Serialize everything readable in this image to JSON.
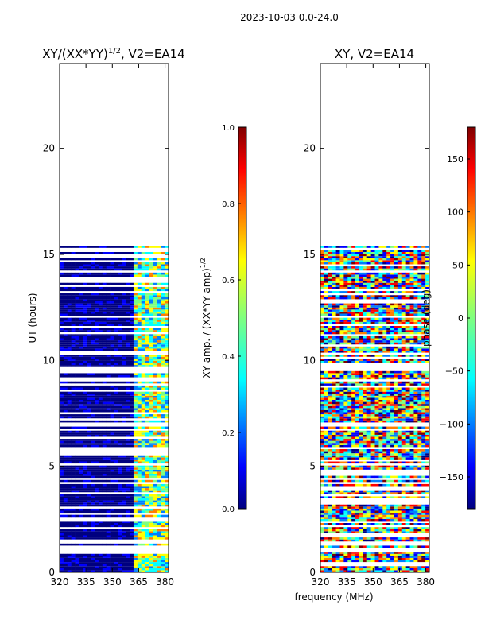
{
  "figure": {
    "suptitle": "2023-10-03 0.0-24.0",
    "shared_xlabel": "frequency (MHz)"
  },
  "chart_data": [
    {
      "type": "heatmap",
      "title_main": "XY/(XX*YY)",
      "title_sup": "1/2",
      "title_tail": ", V2=EA14",
      "xlabel": "",
      "ylabel": "UT (hours)",
      "xlim": [
        320,
        382
      ],
      "ylim": [
        0,
        24
      ],
      "xticks": [
        320,
        335,
        350,
        365,
        380
      ],
      "yticks": [
        0,
        5,
        10,
        15,
        20
      ],
      "data_time_range": [
        0,
        15.5
      ],
      "bright_band_mhz": [
        362,
        382
      ],
      "colorbar": {
        "label_main": "XY amp. / (XX*YY amp)",
        "label_sup": "1/2",
        "min": 0.0,
        "max": 1.0,
        "ticks": [
          "0.0",
          "0.2",
          "0.4",
          "0.6",
          "0.8",
          "1.0"
        ],
        "tick_values": [
          0.0,
          0.2,
          0.4,
          0.6,
          0.8,
          1.0
        ]
      }
    },
    {
      "type": "heatmap",
      "title_main": "XY, V2=EA14",
      "xlabel": "frequency (MHz)",
      "ylabel": "",
      "xlim": [
        320,
        382
      ],
      "ylim": [
        0,
        24
      ],
      "xticks": [
        320,
        335,
        350,
        365,
        380
      ],
      "yticks": [
        0,
        5,
        10,
        15,
        20
      ],
      "data_time_range": [
        0,
        15.5
      ],
      "colorbar": {
        "label_main": "phase (deg)",
        "min": -180,
        "max": 180,
        "ticks": [
          "−150",
          "−100",
          "−50",
          "0",
          "50",
          "100",
          "150"
        ],
        "tick_values": [
          -150,
          -100,
          -50,
          0,
          50,
          100,
          150
        ]
      }
    }
  ],
  "colors": {
    "jet": [
      "#00007f",
      "#0000ff",
      "#007fff",
      "#00ffff",
      "#7fff7f",
      "#ffff00",
      "#ff7f00",
      "#ff0000",
      "#7f0000"
    ]
  }
}
